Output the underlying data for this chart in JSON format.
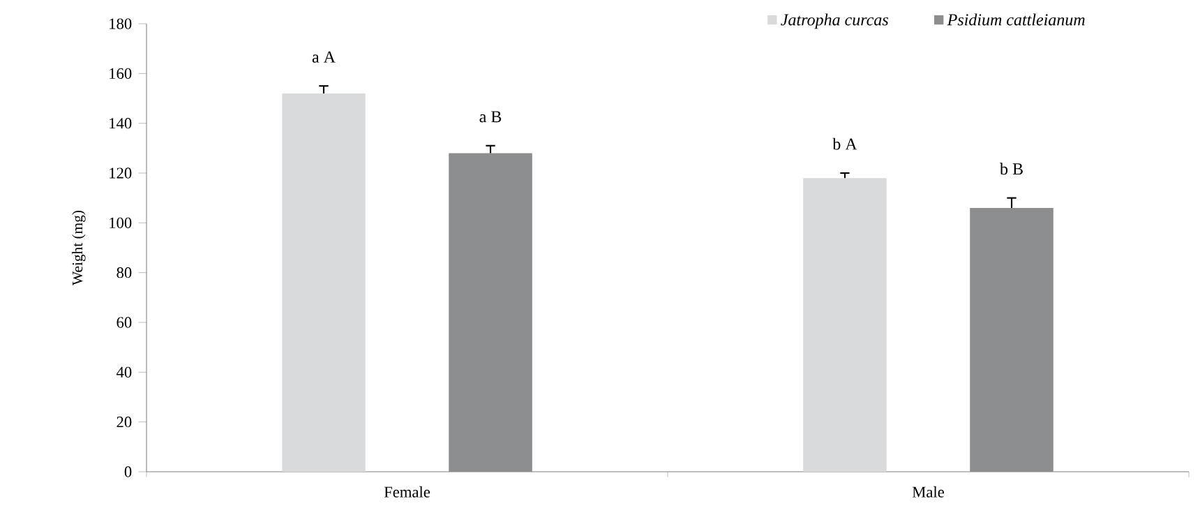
{
  "chart_data": {
    "type": "bar",
    "ylabel": "Weight (mg)",
    "categories": [
      "Female",
      "Male"
    ],
    "series": [
      {
        "name": "Jatropha curcas",
        "color": "#d9dadb",
        "values": [
          152,
          118
        ],
        "errors": [
          [
            152,
            155
          ],
          [
            118,
            120
          ]
        ],
        "value_labels": [
          "a A",
          "b A"
        ]
      },
      {
        "name": "Psidium cattleianum",
        "color": "#8c8d8f",
        "values": [
          128,
          106
        ],
        "errors": [
          [
            128,
            131
          ],
          [
            106,
            110
          ]
        ],
        "value_labels": [
          "a B",
          "b B"
        ]
      }
    ],
    "ylim": [
      0,
      180
    ],
    "yticks": [
      0,
      20,
      40,
      60,
      80,
      100,
      120,
      140,
      160,
      180
    ],
    "legend": "top right"
  }
}
